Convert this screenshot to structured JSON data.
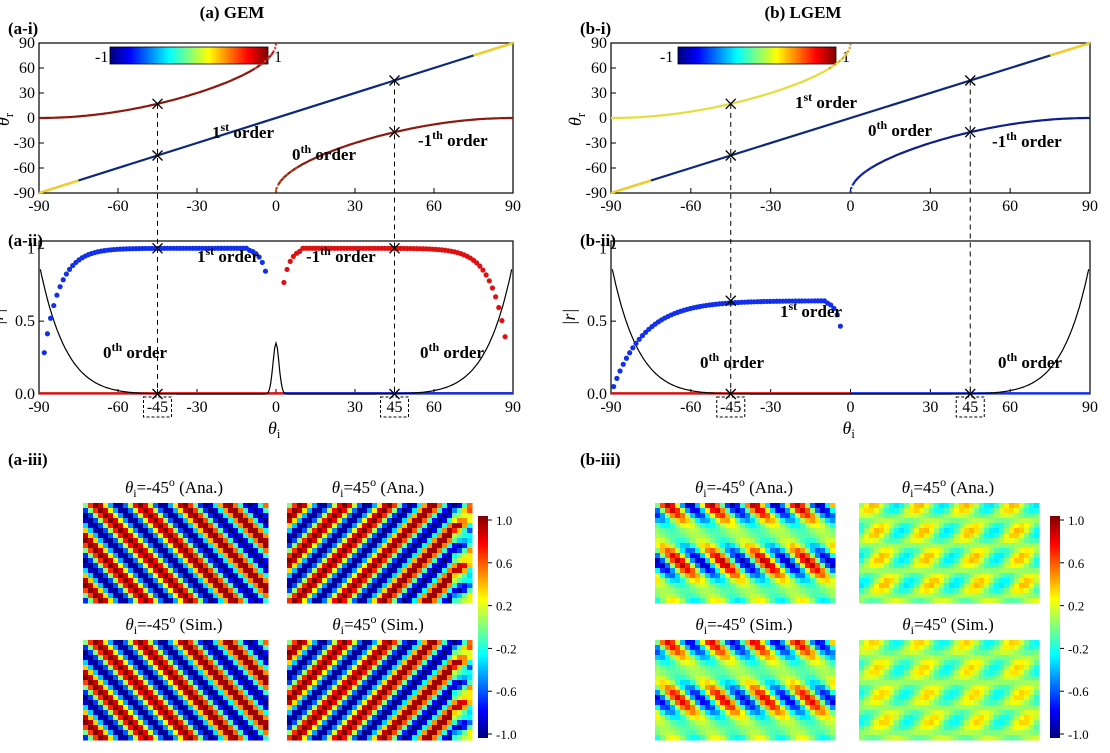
{
  "figure": {
    "left_title": "(a) GEM",
    "right_title": "(b) LGEM",
    "panel_labels": {
      "a_i": "(a-i)",
      "a_ii": "(a-ii)",
      "a_iii": "(a-iii)",
      "b_i": "(b-i)",
      "b_ii": "(b-ii)",
      "b_iii": "(b-iii)"
    },
    "colorbar_inset": {
      "min_label": "-1",
      "max_label": "1"
    },
    "field_colorbar": {
      "ticks": [
        "1.0",
        "0.6",
        "0.2",
        "-0.2",
        "-0.6",
        "-1.0"
      ]
    },
    "field_map_labels": {
      "ana_neg": {
        "symbol": "θ",
        "sub": "i",
        "text": "=-45",
        "sup": "o",
        "tail": " (Ana.)"
      },
      "ana_pos": {
        "symbol": "θ",
        "sub": "i",
        "text": "=45",
        "sup": "o",
        "tail": " (Ana.)"
      },
      "sim_neg": {
        "symbol": "θ",
        "sub": "i",
        "text": "=-45",
        "sup": "o",
        "tail": " (Sim.)"
      },
      "sim_pos": {
        "symbol": "θ",
        "sub": "i",
        "text": "=45",
        "sup": "o",
        "tail": " (Sim.)"
      }
    }
  },
  "chart_data": [
    {
      "id": "a-i",
      "type": "line",
      "xlim": [
        -90,
        90
      ],
      "ylim": [
        -90,
        90
      ],
      "xticks": [
        "-90",
        "-60",
        "-30",
        "0",
        "30",
        "60",
        "90"
      ],
      "yticks": [
        "90",
        "60",
        "30",
        "0",
        "-30",
        "-60",
        "-90"
      ],
      "ylabel": {
        "symbol": "θ",
        "sub": "r"
      },
      "series": [
        {
          "name": "0th order",
          "relation": "theta_r = theta_i",
          "color": "#0d2a7a"
        },
        {
          "name": "1st order",
          "x_range": [
            -90,
            0
          ],
          "y_at_x_minus_90": 0,
          "y_at_x_minus_45": 17,
          "color": "#8b1a10"
        },
        {
          "name": "-1th order",
          "x_range": [
            0,
            90
          ],
          "y_at_x_0": -90,
          "y_at_x_45": -17,
          "y_at_x_90": 0,
          "color": "#8b1a10"
        }
      ],
      "markers": [
        [
          -45,
          -45
        ],
        [
          -45,
          17
        ],
        [
          45,
          45
        ],
        [
          45,
          -17
        ]
      ],
      "annotations": [
        {
          "base": "1",
          "sup": "st",
          "tail": " order"
        },
        {
          "base": "0",
          "sup": "th",
          "tail": " order"
        },
        {
          "base": "-1",
          "sup": "th",
          "tail": " order"
        }
      ]
    },
    {
      "id": "b-i",
      "type": "line",
      "xlim": [
        -90,
        90
      ],
      "ylim": [
        -90,
        90
      ],
      "xticks": [
        "-90",
        "-60",
        "-30",
        "0",
        "30",
        "60",
        "90"
      ],
      "yticks": [
        "90",
        "60",
        "30",
        "0",
        "-30",
        "-60",
        "-90"
      ],
      "ylabel": {
        "symbol": "θ",
        "sub": "r"
      },
      "series": [
        {
          "name": "0th order",
          "relation": "theta_r = theta_i",
          "color": "#0d2a7a"
        },
        {
          "name": "1st order",
          "x_range": [
            -90,
            0
          ],
          "y_at_x_minus_45": 17,
          "color": "#e6dc3a"
        },
        {
          "name": "-1th order",
          "x_range": [
            0,
            90
          ],
          "y_at_x_45": -17,
          "color": "#10208a"
        }
      ],
      "markers": [
        [
          -45,
          -45
        ],
        [
          -45,
          17
        ],
        [
          45,
          45
        ],
        [
          45,
          -17
        ]
      ],
      "annotations": [
        {
          "base": "1",
          "sup": "st",
          "tail": " order"
        },
        {
          "base": "0",
          "sup": "th",
          "tail": " order"
        },
        {
          "base": "-1",
          "sup": "th",
          "tail": " order"
        }
      ]
    },
    {
      "id": "a-ii",
      "type": "scatter",
      "xlim": [
        -90,
        90
      ],
      "ylim": [
        0,
        1.05
      ],
      "xticks": [
        "-90",
        "-60",
        "-45",
        "-30",
        "0",
        "30",
        "45",
        "60",
        "90"
      ],
      "yticks": [
        "1",
        "0.5",
        "0.0"
      ],
      "xlabel": {
        "symbol": "θ",
        "sub": "i"
      },
      "ylabel": "|r|",
      "series": [
        {
          "name": "1st order",
          "color": "#1030ee",
          "x_range": [
            -88,
            -2
          ],
          "plateau": 1.0,
          "value_at_x_minus_2": 0.65
        },
        {
          "name": "-1th order",
          "color": "#dd1111",
          "x_range": [
            2,
            88
          ],
          "plateau": 1.0,
          "value_at_x_2": 0.65
        },
        {
          "name": "0th order",
          "color": "#000000",
          "value_at_x_minus_90": 0.9,
          "value_at_x_90": 0.9,
          "peak_at_x_0": 0.35
        }
      ],
      "markers": [
        [
          -45,
          1.0
        ],
        [
          -45,
          0.0
        ],
        [
          45,
          1.0
        ],
        [
          45,
          0.0
        ]
      ],
      "annotations": [
        {
          "base": "1",
          "sup": "st",
          "tail": " order"
        },
        {
          "base": "-1",
          "sup": "th",
          "tail": " order"
        },
        {
          "base": "0",
          "sup": "th",
          "tail": " order"
        },
        {
          "base": "0",
          "sup": "th",
          "tail": " order"
        }
      ]
    },
    {
      "id": "b-ii",
      "type": "scatter",
      "xlim": [
        -90,
        90
      ],
      "ylim": [
        0,
        1.05
      ],
      "xticks": [
        "-90",
        "-60",
        "-45",
        "-30",
        "0",
        "30",
        "45",
        "60",
        "90"
      ],
      "yticks": [
        "1",
        "0.5",
        "0.0"
      ],
      "xlabel": {
        "symbol": "θ",
        "sub": "i"
      },
      "ylabel": "|r|",
      "series": [
        {
          "name": "1st order",
          "color": "#1030ee",
          "x_range": [
            -89,
            -3
          ],
          "plateau": 0.64,
          "value_at_x_minus_3": 0.38
        },
        {
          "name": "-1th order",
          "color": "#1030ee",
          "x_range": [
            0,
            90
          ],
          "value": 0.0
        },
        {
          "name": "0th order",
          "color": "#000000",
          "value_at_x_minus_90": 0.9,
          "value_at_x_90": 0.9
        }
      ],
      "markers": [
        [
          -45,
          0.64
        ],
        [
          -45,
          0.0
        ],
        [
          45,
          0.0
        ]
      ],
      "annotations": [
        {
          "base": "1",
          "sup": "st",
          "tail": " order"
        },
        {
          "base": "0",
          "sup": "th",
          "tail": " order"
        },
        {
          "base": "0",
          "sup": "th",
          "tail": " order"
        }
      ]
    },
    {
      "id": "a-iii",
      "type": "heatmap",
      "colorscale": "jet",
      "zlim": [
        -1.0,
        1.0
      ],
      "panels": [
        {
          "label": "ana_neg",
          "pattern": "stripes",
          "tilt": "right",
          "amplitude": 1.0
        },
        {
          "label": "ana_pos",
          "pattern": "stripes",
          "tilt": "left",
          "amplitude": 1.0
        },
        {
          "label": "sim_neg",
          "pattern": "stripes",
          "tilt": "right",
          "amplitude": 1.0
        },
        {
          "label": "sim_pos",
          "pattern": "stripes",
          "tilt": "left",
          "amplitude": 1.0
        }
      ]
    },
    {
      "id": "b-iii",
      "type": "heatmap",
      "colorscale": "jet",
      "zlim": [
        -1.0,
        1.0
      ],
      "panels": [
        {
          "label": "ana_neg",
          "pattern": "modulated stripes",
          "amplitude": 0.9
        },
        {
          "label": "ana_pos",
          "pattern": "weak blobs",
          "amplitude": 0.35
        },
        {
          "label": "sim_neg",
          "pattern": "modulated stripes",
          "amplitude": 0.8
        },
        {
          "label": "sim_pos",
          "pattern": "weak blobs",
          "amplitude": 0.3
        }
      ]
    }
  ]
}
